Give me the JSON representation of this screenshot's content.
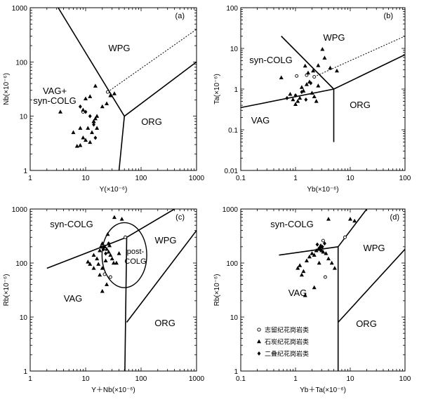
{
  "chart_data": [
    {
      "type": "scatter",
      "panel_label": "(a)",
      "xlabel": "Y(×10⁻⁶)",
      "ylabel": "Nb(×10⁻⁶)",
      "xscale": "log",
      "yscale": "log",
      "xlim": [
        1,
        1000
      ],
      "ylim": [
        1,
        1000
      ],
      "xticks": [
        "1",
        "10",
        "100",
        "1000"
      ],
      "yticks": [
        "1",
        "10",
        "100",
        "1000"
      ],
      "field_labels": [
        "WPG",
        "ORG"
      ],
      "multiline_label": [
        "VAG+",
        "syn-COLG"
      ],
      "boundaries": [
        {
          "style": "solid",
          "points": [
            [
              3.2,
              1000
            ],
            [
              50,
              10
            ],
            [
              40,
              1
            ]
          ]
        },
        {
          "style": "solid",
          "points": [
            [
              50,
              10
            ],
            [
              1000,
              100
            ]
          ]
        },
        {
          "style": "dashed",
          "points": [
            [
              25,
              28
            ],
            [
              1000,
              400
            ]
          ]
        }
      ],
      "series": [
        {
          "name": "志留纪花岗岩类",
          "marker": "circle",
          "points": [
            [
              25,
              28
            ],
            [
              9,
              12
            ]
          ]
        },
        {
          "name": "石炭纪花岗岩类",
          "marker": "triangle",
          "points": [
            [
              10,
              21
            ],
            [
              12,
              23
            ],
            [
              15,
              36
            ],
            [
              3.5,
              12
            ],
            [
              9,
              13
            ],
            [
              11,
              6
            ],
            [
              14,
              8
            ],
            [
              16,
              10
            ],
            [
              7,
              2.8
            ],
            [
              8,
              2.9
            ],
            [
              10,
              3.6
            ],
            [
              12,
              3.3
            ],
            [
              13,
              5
            ],
            [
              14,
              8
            ],
            [
              15,
              9
            ],
            [
              16,
              6
            ],
            [
              20,
              15
            ],
            [
              24,
              17
            ],
            [
              28,
              24
            ],
            [
              33,
              26
            ],
            [
              6,
              5
            ],
            [
              8,
              6
            ],
            [
              9,
              4
            ]
          ]
        },
        {
          "name": "二叠纪花岗岩类",
          "marker": "diamond",
          "points": [
            [
              8,
              15
            ],
            [
              14,
              7
            ],
            [
              15,
              4
            ],
            [
              12,
              10
            ],
            [
              10,
              12
            ]
          ]
        }
      ]
    },
    {
      "type": "scatter",
      "panel_label": "(b)",
      "xlabel": "Yb(×10⁻⁶)",
      "ylabel": "Ta(×10⁻⁶)",
      "xscale": "log",
      "yscale": "log",
      "xlim": [
        0.1,
        100
      ],
      "ylim": [
        0.01,
        100
      ],
      "xticks": [
        "0.1",
        "1",
        "10",
        "100"
      ],
      "yticks": [
        "0.01",
        "0.1",
        "1",
        "10",
        "100"
      ],
      "field_labels": [
        "WPG",
        "syn-COLG",
        "ORG",
        "VAG"
      ],
      "boundaries": [
        {
          "style": "solid",
          "points": [
            [
              0.1,
              0.35
            ],
            [
              5,
              1
            ]
          ]
        },
        {
          "style": "solid",
          "points": [
            [
              0.55,
              20
            ],
            [
              5,
              1
            ],
            [
              5,
              0.05
            ]
          ]
        },
        {
          "style": "solid",
          "points": [
            [
              5,
              1
            ],
            [
              100,
              7
            ]
          ]
        },
        {
          "style": "dashed",
          "points": [
            [
              2.2,
              2
            ],
            [
              100,
              20
            ]
          ]
        }
      ],
      "series": [
        {
          "name": "志留纪花岗岩类",
          "marker": "circle",
          "points": [
            [
              1.05,
              2.1
            ],
            [
              1.6,
              2.2
            ],
            [
              2.2,
              2
            ]
          ]
        },
        {
          "name": "石炭纪花岗岩类",
          "marker": "triangle",
          "points": [
            [
              1.5,
              3.7
            ],
            [
              2.6,
              3.8
            ],
            [
              3.1,
              9.5
            ],
            [
              3.4,
              5.8
            ],
            [
              4.3,
              3.3
            ],
            [
              5.7,
              2.8
            ],
            [
              0.55,
              1.9
            ],
            [
              0.8,
              0.75
            ],
            [
              0.9,
              0.55
            ],
            [
              1.0,
              0.42
            ],
            [
              1.1,
              0.5
            ],
            [
              1.3,
              1.1
            ],
            [
              1.4,
              0.9
            ],
            [
              1.6,
              1.3
            ],
            [
              1.8,
              1.5
            ],
            [
              2.0,
              0.8
            ],
            [
              2.2,
              0.65
            ],
            [
              2.4,
              0.5
            ],
            [
              2.6,
              1.2
            ],
            [
              1.2,
              0.6
            ],
            [
              2.1,
              2.8
            ],
            [
              1.7,
              2.5
            ]
          ]
        },
        {
          "name": "二叠纪花岗岩类",
          "marker": "diamond",
          "points": [
            [
              0.7,
              0.6
            ],
            [
              1.0,
              0.7
            ],
            [
              1.3,
              0.85
            ],
            [
              1.55,
              0.55
            ],
            [
              1.9,
              1.4
            ]
          ]
        }
      ]
    },
    {
      "type": "scatter",
      "panel_label": "(c)",
      "xlabel": "Y＋Nb(×10⁻⁶)",
      "ylabel": "Rb(×10⁻⁶)",
      "xscale": "log",
      "yscale": "log",
      "xlim": [
        1,
        1000
      ],
      "ylim": [
        1,
        1000
      ],
      "xticks": [
        "1",
        "10",
        "100",
        "1000"
      ],
      "yticks": [
        "1",
        "10",
        "100",
        "1000"
      ],
      "field_labels": [
        "syn-COLG",
        "WPG",
        "VAG",
        "ORG"
      ],
      "multiline_label": [
        "post-",
        "COLG"
      ],
      "boundaries": [
        {
          "style": "solid",
          "points": [
            [
              2,
              80
            ],
            [
              55,
              300
            ]
          ]
        },
        {
          "style": "solid",
          "points": [
            [
              55,
              300
            ],
            [
              400,
              1000
            ]
          ]
        },
        {
          "style": "solid",
          "points": [
            [
              55,
              300
            ],
            [
              51,
              1
            ]
          ]
        },
        {
          "style": "solid",
          "points": [
            [
              55,
              8
            ],
            [
              1000,
              400
            ]
          ]
        }
      ],
      "post_colg_circle": {
        "center": [
          50,
          140
        ],
        "x_span": [
          20,
          128
        ],
        "y_span": [
          35,
          560
        ]
      },
      "series": [
        {
          "name": "志留纪花岗岩类",
          "marker": "circle",
          "points": [
            [
              28,
              55
            ],
            [
              22,
              62
            ],
            [
              52,
              300
            ]
          ]
        },
        {
          "name": "石炭纪花岗岩类",
          "marker": "triangle",
          "points": [
            [
              33,
              700
            ],
            [
              45,
              650
            ],
            [
              25,
              340
            ],
            [
              14,
              140
            ],
            [
              16,
              120
            ],
            [
              18,
              170
            ],
            [
              20,
              230
            ],
            [
              22,
              200
            ],
            [
              24,
              180
            ],
            [
              26,
              160
            ],
            [
              28,
              140
            ],
            [
              30,
              120
            ],
            [
              32,
              100
            ],
            [
              20,
              80
            ],
            [
              18,
              60
            ],
            [
              24,
              40
            ],
            [
              20,
              30
            ],
            [
              12,
              95
            ],
            [
              11,
              105
            ],
            [
              14,
              80
            ],
            [
              17,
              95
            ],
            [
              23,
              110
            ],
            [
              36,
              100
            ],
            [
              40,
              150
            ],
            [
              27,
              210
            ]
          ]
        },
        {
          "name": "二叠纪花岗岩类",
          "marker": "diamond",
          "points": [
            [
              19,
              200
            ],
            [
              21,
              180
            ],
            [
              23,
              150
            ],
            [
              26,
              230
            ]
          ]
        }
      ]
    },
    {
      "type": "scatter",
      "panel_label": "(d)",
      "xlabel": "Yb＋Ta(×10⁻⁶)",
      "ylabel": "Rb(×10⁻⁶)",
      "xscale": "log",
      "yscale": "log",
      "xlim": [
        0.1,
        100
      ],
      "ylim": [
        1,
        1000
      ],
      "xticks": [
        "0.1",
        "1",
        "10",
        "100"
      ],
      "yticks": [
        "1",
        "10",
        "100",
        "1000"
      ],
      "field_labels": [
        "syn-COLG",
        "WPG",
        "VAG",
        "ORG"
      ],
      "boundaries": [
        {
          "style": "solid",
          "points": [
            [
              0.5,
              140
            ],
            [
              6,
              200
            ]
          ]
        },
        {
          "style": "solid",
          "points": [
            [
              6,
              200
            ],
            [
              20,
              1000
            ]
          ]
        },
        {
          "style": "solid",
          "points": [
            [
              6,
              200
            ],
            [
              6,
              1
            ]
          ]
        },
        {
          "style": "solid",
          "points": [
            [
              6,
              8
            ],
            [
              100,
              180
            ]
          ]
        }
      ],
      "series": [
        {
          "name": "志留纪花岗岩类",
          "marker": "circle",
          "points": [
            [
              3.5,
              55
            ],
            [
              3.2,
              260
            ],
            [
              8,
              300
            ]
          ]
        },
        {
          "name": "石炭纪花岗岩类",
          "marker": "triangle",
          "points": [
            [
              4,
              650
            ],
            [
              10,
              650
            ],
            [
              12,
              600
            ],
            [
              1.2,
              90
            ],
            [
              1.4,
              70
            ],
            [
              1.6,
              110
            ],
            [
              1.8,
              130
            ],
            [
              2.0,
              150
            ],
            [
              2.2,
              140
            ],
            [
              2.4,
              170
            ],
            [
              2.6,
              180
            ],
            [
              2.8,
              200
            ],
            [
              3.0,
              170
            ],
            [
              3.2,
              160
            ],
            [
              3.6,
              150
            ],
            [
              4.0,
              120
            ],
            [
              4.6,
              100
            ],
            [
              5.2,
              80
            ],
            [
              2.2,
              35
            ],
            [
              1.5,
              25
            ],
            [
              1.3,
              60
            ],
            [
              1.1,
              80
            ],
            [
              2.7,
              100
            ],
            [
              2.9,
              210
            ]
          ]
        },
        {
          "name": "二叠纪花岗岩类",
          "marker": "diamond",
          "points": [
            [
              2.5,
              220
            ],
            [
              2.8,
              180
            ],
            [
              3.1,
              200
            ],
            [
              3.4,
              230
            ]
          ]
        }
      ],
      "legend_position": "bottom-left",
      "legend": [
        {
          "marker": "circle",
          "label": "志留纪花岗岩类"
        },
        {
          "marker": "triangle",
          "label": "石炭纪花岗岩类"
        },
        {
          "marker": "diamond",
          "label": "二叠纪花岗岩类"
        }
      ]
    }
  ]
}
